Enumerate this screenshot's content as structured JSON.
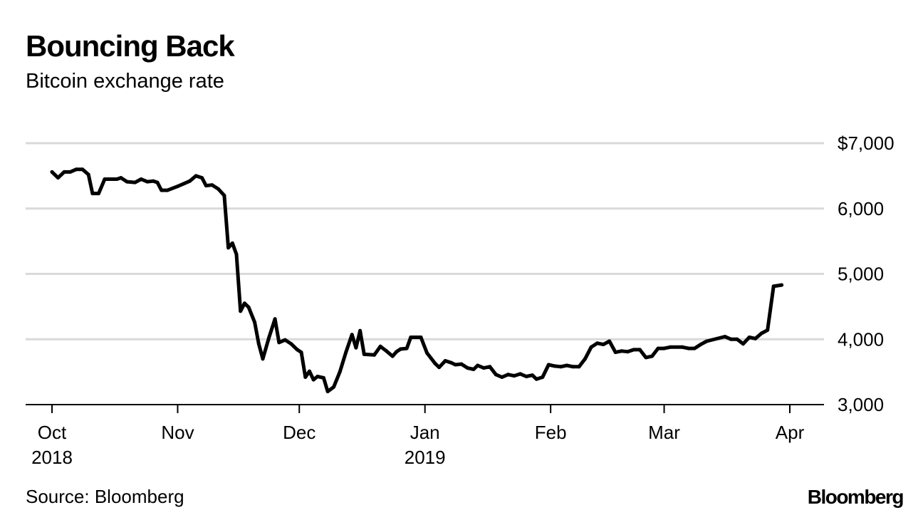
{
  "header": {
    "title": "Bouncing Back",
    "subtitle": "Bitcoin exchange rate"
  },
  "footer": {
    "source": "Source: Bloomberg",
    "brand": "Bloomberg"
  },
  "colors": {
    "line": "#000000",
    "grid": "#d9d9d9",
    "axis": "#000000"
  },
  "chart_data": {
    "type": "line",
    "title": "Bouncing Back",
    "subtitle": "Bitcoin exchange rate",
    "xlabel": "",
    "ylabel": "",
    "ylim": [
      3000,
      7000
    ],
    "xlim": [
      -4,
      190
    ],
    "y_ticks": [
      {
        "value": 7000,
        "label": "$7,000"
      },
      {
        "value": 6000,
        "label": "6,000"
      },
      {
        "value": 5000,
        "label": "5,000"
      },
      {
        "value": 4000,
        "label": "4,000"
      },
      {
        "value": 3000,
        "label": "3,000"
      }
    ],
    "x_ticks": [
      {
        "day": 0,
        "label": "Oct",
        "year": "2018"
      },
      {
        "day": 31,
        "label": "Nov",
        "year": ""
      },
      {
        "day": 61,
        "label": "Dec",
        "year": ""
      },
      {
        "day": 92,
        "label": "Jan",
        "year": "2019"
      },
      {
        "day": 123,
        "label": "Feb",
        "year": ""
      },
      {
        "day": 151,
        "label": "Mar",
        "year": ""
      },
      {
        "day": 182,
        "label": "Apr",
        "year": ""
      }
    ],
    "grid": true,
    "legend": "none",
    "series": [
      {
        "name": "Bitcoin exchange rate",
        "x_unit": "days since Oct 1, 2018",
        "points": [
          [
            0,
            6560
          ],
          [
            1.5,
            6470
          ],
          [
            3,
            6560
          ],
          [
            4.5,
            6560
          ],
          [
            6,
            6600
          ],
          [
            7.5,
            6600
          ],
          [
            9,
            6520
          ],
          [
            10,
            6230
          ],
          [
            11.5,
            6230
          ],
          [
            13,
            6450
          ],
          [
            16,
            6450
          ],
          [
            17,
            6470
          ],
          [
            18.5,
            6410
          ],
          [
            20.5,
            6400
          ],
          [
            22,
            6450
          ],
          [
            23.5,
            6410
          ],
          [
            25,
            6420
          ],
          [
            26,
            6400
          ],
          [
            27,
            6280
          ],
          [
            28.5,
            6280
          ],
          [
            31,
            6340
          ],
          [
            34,
            6420
          ],
          [
            35.5,
            6500
          ],
          [
            37,
            6470
          ],
          [
            38,
            6350
          ],
          [
            39.5,
            6360
          ],
          [
            41,
            6300
          ],
          [
            42.5,
            6200
          ],
          [
            43.5,
            5400
          ],
          [
            44.5,
            5470
          ],
          [
            45.5,
            5300
          ],
          [
            46.5,
            4430
          ],
          [
            47.5,
            4550
          ],
          [
            48.5,
            4490
          ],
          [
            50,
            4260
          ],
          [
            51,
            3930
          ],
          [
            52,
            3700
          ],
          [
            53.5,
            4020
          ],
          [
            55,
            4310
          ],
          [
            56,
            3950
          ],
          [
            57.5,
            3990
          ],
          [
            59,
            3930
          ],
          [
            60.5,
            3840
          ],
          [
            61.5,
            3800
          ],
          [
            62.5,
            3420
          ],
          [
            63.5,
            3510
          ],
          [
            64.5,
            3380
          ],
          [
            65.5,
            3430
          ],
          [
            67,
            3410
          ],
          [
            68,
            3200
          ],
          [
            69.5,
            3270
          ],
          [
            71,
            3500
          ],
          [
            72.5,
            3800
          ],
          [
            74,
            4070
          ],
          [
            75,
            3870
          ],
          [
            76,
            4130
          ],
          [
            77,
            3770
          ],
          [
            79.5,
            3760
          ],
          [
            81,
            3890
          ],
          [
            82.5,
            3820
          ],
          [
            84,
            3740
          ],
          [
            85,
            3810
          ],
          [
            86,
            3850
          ],
          [
            87.5,
            3860
          ],
          [
            88.5,
            4030
          ],
          [
            91,
            4030
          ],
          [
            92.5,
            3790
          ],
          [
            93.5,
            3710
          ],
          [
            94.5,
            3630
          ],
          [
            95.5,
            3570
          ],
          [
            97,
            3670
          ],
          [
            98.5,
            3640
          ],
          [
            99.5,
            3610
          ],
          [
            101,
            3620
          ],
          [
            102.5,
            3560
          ],
          [
            104,
            3540
          ],
          [
            105,
            3600
          ],
          [
            106.5,
            3560
          ],
          [
            108,
            3580
          ],
          [
            109.5,
            3460
          ],
          [
            111,
            3420
          ],
          [
            112.5,
            3460
          ],
          [
            114,
            3440
          ],
          [
            115.5,
            3470
          ],
          [
            117,
            3430
          ],
          [
            118.5,
            3450
          ],
          [
            119.5,
            3390
          ],
          [
            121,
            3420
          ],
          [
            122.5,
            3610
          ],
          [
            124,
            3590
          ],
          [
            125.5,
            3580
          ],
          [
            127,
            3600
          ],
          [
            128.5,
            3580
          ],
          [
            130,
            3580
          ],
          [
            131.5,
            3700
          ],
          [
            133,
            3880
          ],
          [
            134.5,
            3940
          ],
          [
            136,
            3920
          ],
          [
            137.5,
            3970
          ],
          [
            139,
            3800
          ],
          [
            140.5,
            3820
          ],
          [
            142,
            3810
          ],
          [
            143.5,
            3840
          ],
          [
            145,
            3840
          ],
          [
            146.5,
            3720
          ],
          [
            148,
            3740
          ],
          [
            149.5,
            3860
          ],
          [
            151,
            3860
          ],
          [
            152.5,
            3880
          ],
          [
            155.5,
            3880
          ],
          [
            157,
            3860
          ],
          [
            158.5,
            3860
          ],
          [
            160,
            3920
          ],
          [
            161.5,
            3970
          ],
          [
            166,
            4040
          ],
          [
            167.5,
            4000
          ],
          [
            169,
            4000
          ],
          [
            170.5,
            3930
          ],
          [
            172,
            4030
          ],
          [
            173.5,
            4010
          ],
          [
            175,
            4090
          ],
          [
            176.5,
            4140
          ],
          [
            178,
            4810
          ],
          [
            180,
            4830
          ]
        ]
      }
    ]
  }
}
